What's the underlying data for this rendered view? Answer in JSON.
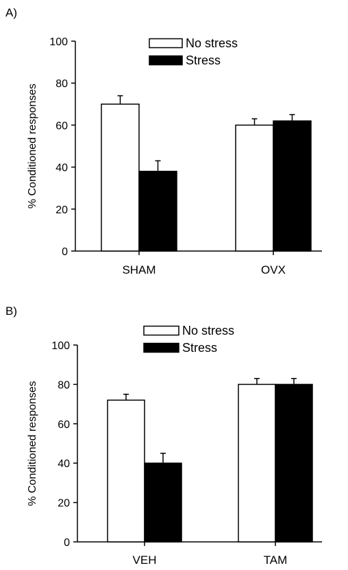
{
  "chart_data": [
    {
      "type": "bar",
      "panel_label": "A)",
      "categories": [
        "SHAM",
        "OVX"
      ],
      "series": [
        {
          "name": "No stress",
          "values": [
            70,
            60
          ],
          "errors": [
            4,
            3
          ],
          "color": "#ffffff"
        },
        {
          "name": "Stress",
          "values": [
            38,
            62
          ],
          "errors": [
            5,
            3
          ],
          "color": "#000000"
        }
      ],
      "ylabel": "% Conditioned responses",
      "ylim": [
        0,
        100
      ],
      "yticks": [
        0,
        20,
        40,
        60,
        80,
        100
      ],
      "legend_position": "top-center",
      "grid": false
    },
    {
      "type": "bar",
      "panel_label": "B)",
      "categories": [
        "VEH",
        "TAM"
      ],
      "series": [
        {
          "name": "No stress",
          "values": [
            72,
            80
          ],
          "errors": [
            3,
            3
          ],
          "color": "#ffffff"
        },
        {
          "name": "Stress",
          "values": [
            40,
            80
          ],
          "errors": [
            5,
            3
          ],
          "color": "#000000"
        }
      ],
      "ylabel": "% Conditioned responses",
      "ylim": [
        0,
        100
      ],
      "yticks": [
        0,
        20,
        40,
        60,
        80,
        100
      ],
      "legend_position": "top-center",
      "grid": false
    }
  ]
}
